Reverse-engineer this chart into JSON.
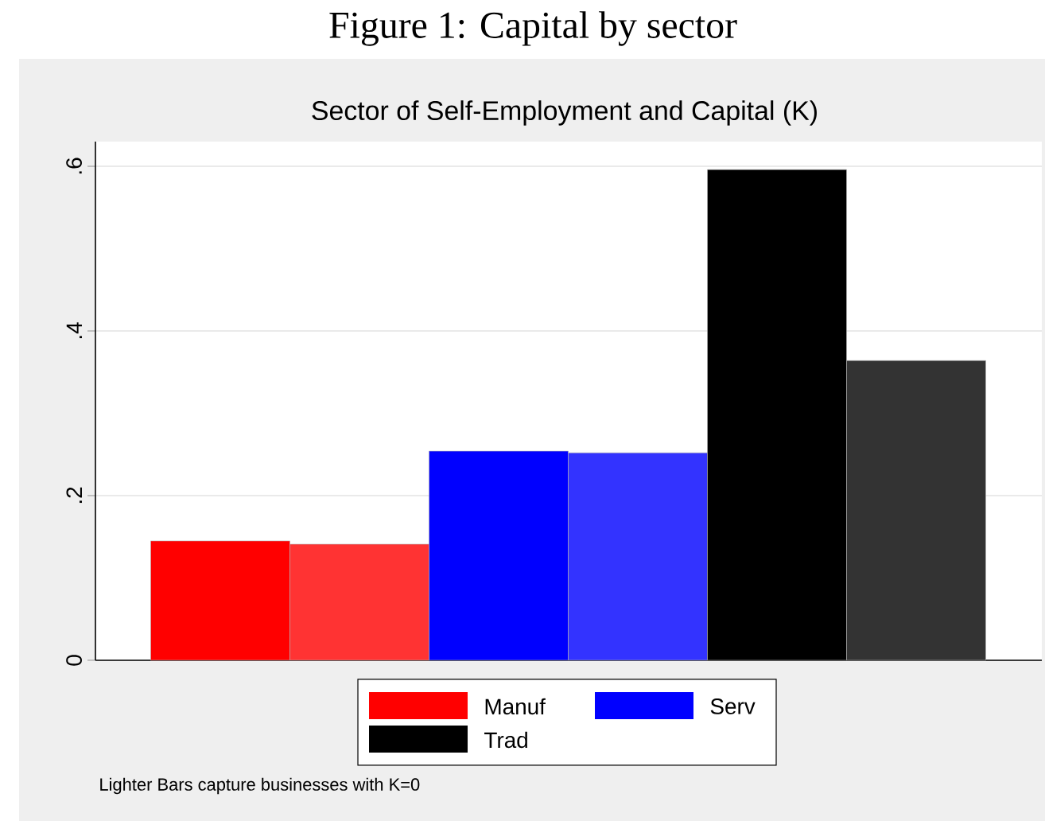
{
  "chart_data": {
    "type": "bar",
    "title": "Figure 1: Capital by sector",
    "subtitle": "Sector of Self-Employment and Capital (K)",
    "categories": [
      null,
      null,
      null,
      null,
      null,
      null
    ],
    "series": [
      {
        "name": "Manuf",
        "color": "#ff0000",
        "colors": [
          "#ff0000",
          "#ff3333",
          "#ff0000",
          "#ff0000",
          "#ff0000",
          "#ff0000"
        ],
        "values": [
          0.145,
          0.141,
          null,
          null,
          null,
          null
        ]
      },
      {
        "name": "Serv",
        "color": "#0000ff",
        "colors": [
          "#0000ff",
          "#0000ff",
          "#0000ff",
          "#3333ff",
          "#0000ff",
          "#0000ff"
        ],
        "values": [
          null,
          null,
          0.254,
          0.252,
          null,
          null
        ]
      },
      {
        "name": "Trad",
        "color": "#000000",
        "colors": [
          "#000000",
          "#000000",
          "#000000",
          "#000000",
          "#000000",
          "#333333"
        ],
        "values": [
          null,
          null,
          null,
          null,
          0.596,
          0.364
        ]
      }
    ],
    "ylim": [
      0,
      0.63
    ],
    "yticks": [
      0,
      {
        "value": 0.2,
        "label": ".2"
      },
      {
        "value": 0.4,
        "label": ".4"
      },
      {
        "value": 0.6,
        "label": ".6"
      }
    ],
    "grid": "y",
    "legend": "bottom",
    "annotations": [
      "Lighter Bars capture businesses with K=0"
    ]
  }
}
